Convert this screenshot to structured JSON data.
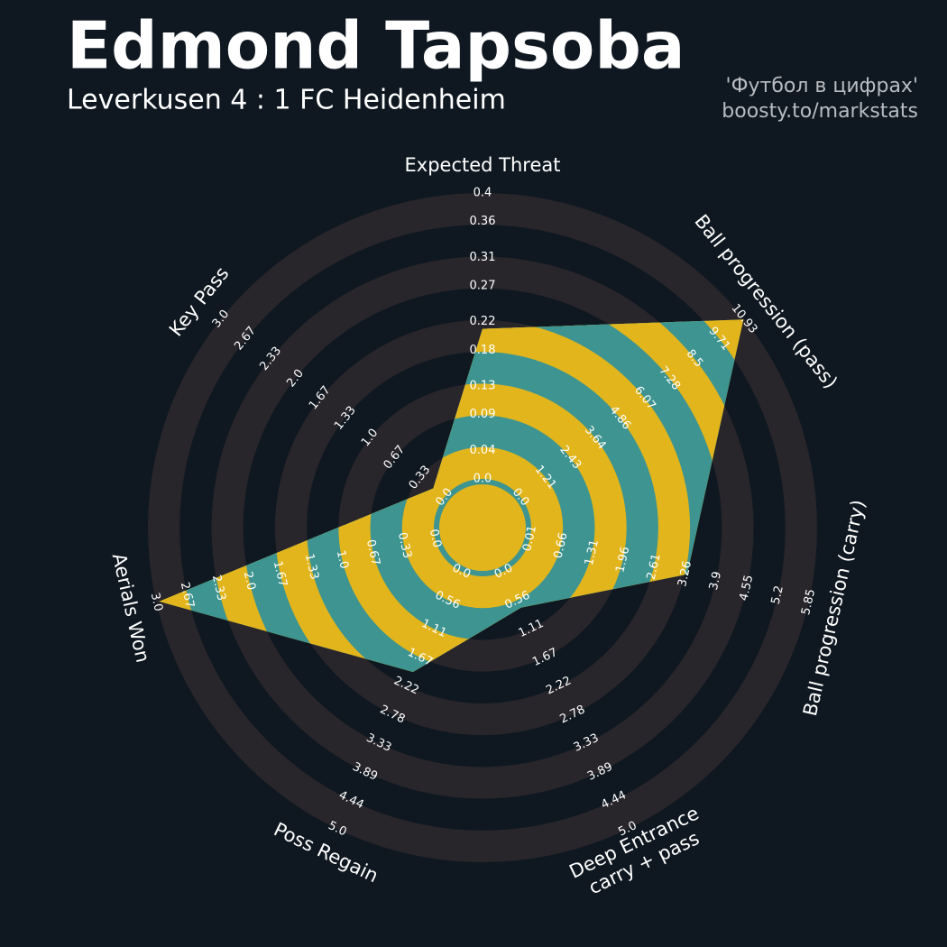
{
  "chart_data": {
    "type": "radar",
    "title": "Edmond Tapsoba",
    "subtitle": "Leverkusen 4 : 1 FC Heidenheim",
    "credits": [
      "'Футбол в цифрах'",
      "boosty.to/markstats"
    ],
    "colors": {
      "background": "#0f1820",
      "ring": "#28252b",
      "fill": "#3d9490",
      "band": "#e2b51c"
    },
    "axes": [
      {
        "name": "Expected Threat",
        "lim": [
          0,
          0.4
        ],
        "ticks": [
          {
            "value": 0,
            "label": "0.0"
          },
          0.04,
          0.09,
          0.13,
          0.18,
          0.22,
          0.27,
          0.31,
          0.36,
          0.4
        ]
      },
      {
        "name": "Ball progression (pass)",
        "lim": [
          0,
          10.93
        ],
        "ticks": [
          {
            "value": 0,
            "label": "0.0"
          },
          1.21,
          2.43,
          3.64,
          4.86,
          6.07,
          7.28,
          8.5,
          9.71,
          10.93
        ]
      },
      {
        "name": "Ball progression (carry)",
        "lim": [
          0.01,
          5.85
        ],
        "ticks": [
          0.01,
          0.66,
          1.31,
          1.96,
          2.61,
          3.26,
          3.9,
          4.55,
          5.2,
          5.85
        ]
      },
      {
        "name": "Deep Entrance\ncarry + pass",
        "lim": [
          0,
          5
        ],
        "ticks": [
          {
            "value": 0,
            "label": "0.0"
          },
          0.56,
          1.11,
          1.67,
          2.22,
          2.78,
          3.33,
          3.89,
          4.44,
          {
            "value": 5,
            "label": "5.0"
          }
        ]
      },
      {
        "name": "Poss Regain",
        "lim": [
          0,
          5
        ],
        "ticks": [
          {
            "value": 0,
            "label": "0.0"
          },
          0.56,
          1.11,
          1.67,
          2.22,
          2.78,
          3.33,
          3.89,
          4.44,
          {
            "value": 5,
            "label": "5.0"
          }
        ]
      },
      {
        "name": "Aerials Won",
        "lim": [
          0,
          3
        ],
        "ticks": [
          {
            "value": 0,
            "label": "0.0"
          },
          0.33,
          0.67,
          {
            "value": 1,
            "label": "1.0"
          },
          1.33,
          1.67,
          {
            "value": 2,
            "label": "2.0"
          },
          2.33,
          2.67,
          {
            "value": 3,
            "label": "3.0"
          }
        ]
      },
      {
        "name": "Key Pass",
        "lim": [
          0,
          3
        ],
        "ticks": [
          {
            "value": 0,
            "label": "0.0"
          },
          0.33,
          0.67,
          {
            "value": 1,
            "label": "1.0"
          },
          1.33,
          1.67,
          {
            "value": 2,
            "label": "2.0"
          },
          2.33,
          2.67,
          {
            "value": 3,
            "label": "3.0"
          }
        ]
      }
    ],
    "series": [
      {
        "values": [
          0.21,
          10.9,
          3.3,
          0.7,
          1.95,
          2.97,
          0.15
        ]
      }
    ]
  }
}
